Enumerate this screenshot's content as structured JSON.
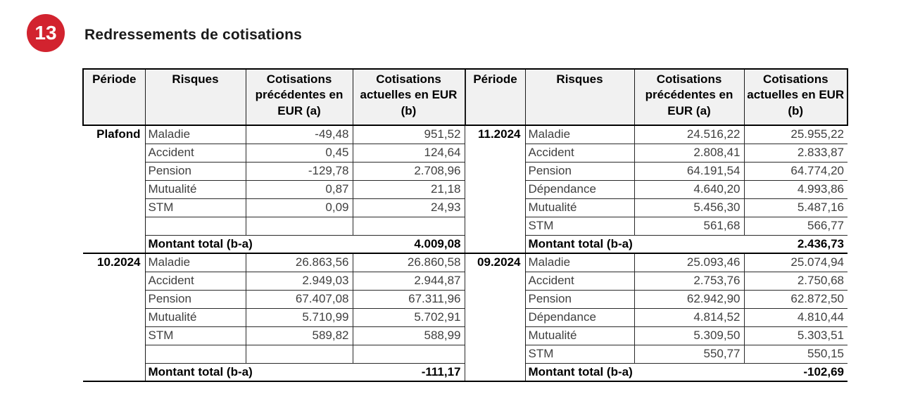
{
  "badge": {
    "number": "13"
  },
  "title": "Redressements de cotisations",
  "colors": {
    "badge_red": "#d2232f",
    "header_bg": "#f1f1f1"
  },
  "columns": [
    "Période",
    "Risques",
    "Cotisations précédentes en EUR (a)",
    "Cotisations actuelles en EUR (b)"
  ],
  "total_label": "Montant total (b-a)",
  "tables": [
    {
      "name": "left",
      "sections": [
        {
          "period": "Plafond",
          "rows": [
            {
              "risque": "Maladie",
              "a": "-49,48",
              "b": "951,52"
            },
            {
              "risque": "Accident",
              "a": "0,45",
              "b": "124,64"
            },
            {
              "risque": "Pension",
              "a": "-129,78",
              "b": "2.708,96"
            },
            {
              "risque": "Mutualité",
              "a": "0,87",
              "b": "21,18"
            },
            {
              "risque": "STM",
              "a": "0,09",
              "b": "24,93"
            },
            {
              "risque": "",
              "a": "",
              "b": ""
            }
          ],
          "total": "4.009,08"
        },
        {
          "period": "10.2024",
          "rows": [
            {
              "risque": "Maladie",
              "a": "26.863,56",
              "b": "26.860,58"
            },
            {
              "risque": "Accident",
              "a": "2.949,03",
              "b": "2.944,87"
            },
            {
              "risque": "Pension",
              "a": "67.407,08",
              "b": "67.311,96"
            },
            {
              "risque": "Mutualité",
              "a": "5.710,99",
              "b": "5.702,91"
            },
            {
              "risque": "STM",
              "a": "589,82",
              "b": "588,99"
            },
            {
              "risque": "",
              "a": "",
              "b": ""
            }
          ],
          "total": "-111,17"
        }
      ]
    },
    {
      "name": "right",
      "sections": [
        {
          "period": "11.2024",
          "rows": [
            {
              "risque": "Maladie",
              "a": "24.516,22",
              "b": "25.955,22"
            },
            {
              "risque": "Accident",
              "a": "2.808,41",
              "b": "2.833,87"
            },
            {
              "risque": "Pension",
              "a": "64.191,54",
              "b": "64.774,20"
            },
            {
              "risque": "Dépendance",
              "a": "4.640,20",
              "b": "4.993,86"
            },
            {
              "risque": "Mutualité",
              "a": "5.456,30",
              "b": "5.487,16"
            },
            {
              "risque": "STM",
              "a": "561,68",
              "b": "566,77"
            }
          ],
          "total": "2.436,73"
        },
        {
          "period": "09.2024",
          "rows": [
            {
              "risque": "Maladie",
              "a": "25.093,46",
              "b": "25.074,94"
            },
            {
              "risque": "Accident",
              "a": "2.753,76",
              "b": "2.750,68"
            },
            {
              "risque": "Pension",
              "a": "62.942,90",
              "b": "62.872,50"
            },
            {
              "risque": "Dépendance",
              "a": "4.814,52",
              "b": "4.810,44"
            },
            {
              "risque": "Mutualité",
              "a": "5.309,50",
              "b": "5.303,51"
            },
            {
              "risque": "STM",
              "a": "550,77",
              "b": "550,15"
            }
          ],
          "total": "-102,69"
        }
      ]
    }
  ]
}
